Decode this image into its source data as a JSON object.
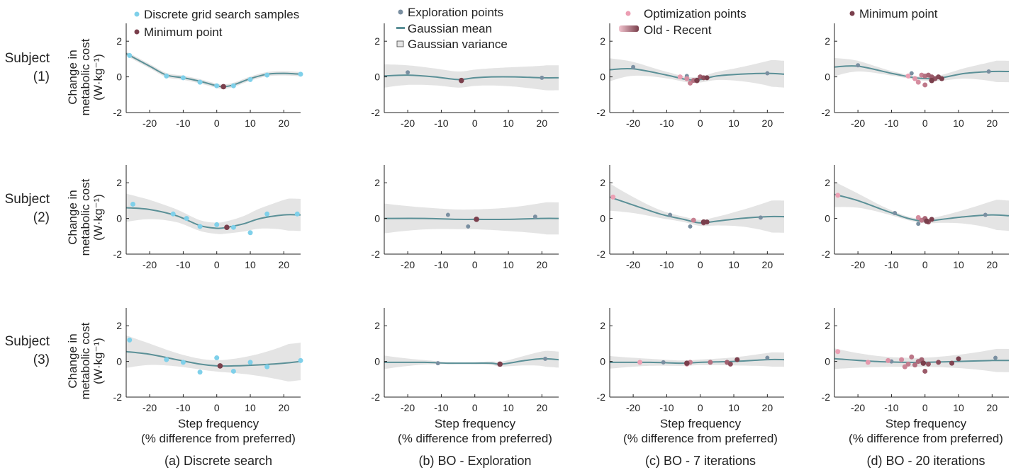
{
  "colors": {
    "grid": "#7fd0ea",
    "exploration": "#7a8fa1",
    "optimization": "#ec9eb3",
    "minimum": "#7a3f4c",
    "mean": "#5b9097",
    "variance": "#e4e4e4"
  },
  "legends": {
    "grid_search": "Discrete grid search samples",
    "minimum": "Minimum point",
    "exploration": "Exploration points",
    "gaussian_mean": "Gaussian mean",
    "gaussian_variance": "Gaussian variance",
    "optimization": "Optimization points",
    "old_recent": "Old - Recent"
  },
  "ylabel": [
    "Change in",
    "metabolic cost",
    "(W·kg⁻¹)"
  ],
  "xlabel": [
    "Step frequency",
    "(% difference from preferred)"
  ],
  "subjects": [
    {
      "name": "Subject",
      "id": "(1)"
    },
    {
      "name": "Subject",
      "id": "(2)"
    },
    {
      "name": "Subject",
      "id": "(3)"
    }
  ],
  "captions": [
    "(a)  Discrete search",
    "(b) BO - Exploration",
    "(c) BO - 7 iterations",
    "(d) BO - 20 iterations"
  ],
  "chart_data": {
    "type": "scatter",
    "xlim": [
      -27,
      25
    ],
    "ylim": [
      -2,
      3
    ],
    "xticks": [
      -20,
      -10,
      0,
      10,
      20
    ],
    "yticks": [
      -2,
      0,
      2
    ],
    "panels": [
      {
        "row": 0,
        "col": 0,
        "mean": [
          [
            -27,
            1.3
          ],
          [
            -20,
            0.6
          ],
          [
            -15,
            0.1
          ],
          [
            -10,
            -0.05
          ],
          [
            -5,
            -0.25
          ],
          [
            0,
            -0.5
          ],
          [
            2,
            -0.55
          ],
          [
            5,
            -0.45
          ],
          [
            10,
            -0.1
          ],
          [
            15,
            0.15
          ],
          [
            20,
            0.2
          ],
          [
            25,
            0.15
          ]
        ],
        "band": [
          0.12,
          0.12
        ],
        "grid": [
          [
            -26,
            1.2
          ],
          [
            -15,
            0.05
          ],
          [
            -10,
            -0.05
          ],
          [
            -5,
            -0.3
          ],
          [
            0,
            -0.5
          ],
          [
            5,
            -0.5
          ],
          [
            10,
            -0.15
          ],
          [
            15,
            0.1
          ],
          [
            25,
            0.15
          ]
        ],
        "explore": [],
        "optim": [],
        "minimum": [
          2,
          -0.55
        ]
      },
      {
        "row": 0,
        "col": 1,
        "mean": [
          [
            -27,
            0.05
          ],
          [
            -20,
            0.1
          ],
          [
            -12,
            0.0
          ],
          [
            -5,
            -0.15
          ],
          [
            0,
            -0.05
          ],
          [
            5,
            0.0
          ],
          [
            12,
            0.0
          ],
          [
            20,
            -0.05
          ],
          [
            25,
            -0.05
          ]
        ],
        "band": [
          0.7,
          0.45
        ],
        "grid": [],
        "explore": [
          [
            -20,
            0.25
          ],
          [
            20,
            -0.05
          ]
        ],
        "optim": [],
        "minimum": [
          -4,
          -0.2
        ]
      },
      {
        "row": 0,
        "col": 2,
        "mean": [
          [
            -27,
            0.4
          ],
          [
            -20,
            0.45
          ],
          [
            -10,
            0.1
          ],
          [
            -4,
            -0.15
          ],
          [
            0,
            -0.15
          ],
          [
            5,
            0.05
          ],
          [
            12,
            0.15
          ],
          [
            20,
            0.2
          ],
          [
            25,
            0.15
          ]
        ],
        "band": [
          0.75,
          0.15
        ],
        "grid": [],
        "explore": [
          [
            -20,
            0.55
          ],
          [
            -4,
            0.05
          ],
          [
            20,
            0.2
          ]
        ],
        "optim": [
          [
            -6,
            0.0
          ],
          [
            -4,
            -0.1
          ],
          [
            -3,
            -0.35
          ],
          [
            -2,
            -0.2
          ],
          [
            0,
            0.0
          ],
          [
            1,
            -0.05
          ],
          [
            2,
            -0.05
          ]
        ],
        "minimum": [
          -1,
          -0.2
        ]
      },
      {
        "row": 0,
        "col": 3,
        "mean": [
          [
            -27,
            0.55
          ],
          [
            -20,
            0.6
          ],
          [
            -10,
            0.2
          ],
          [
            -3,
            -0.05
          ],
          [
            1,
            -0.1
          ],
          [
            5,
            -0.05
          ],
          [
            12,
            0.2
          ],
          [
            20,
            0.3
          ],
          [
            25,
            0.3
          ]
        ],
        "band": [
          0.6,
          0.1
        ],
        "grid": [],
        "explore": [
          [
            -20,
            0.65
          ],
          [
            -4,
            0.2
          ],
          [
            19,
            0.3
          ]
        ],
        "optim": [
          [
            -5,
            0.05
          ],
          [
            -3,
            -0.1
          ],
          [
            -2,
            -0.3
          ],
          [
            -1,
            0.1
          ],
          [
            0,
            -0.45
          ],
          [
            0,
            0.05
          ],
          [
            1,
            0.1
          ],
          [
            2,
            0.0
          ],
          [
            3,
            -0.1
          ],
          [
            4,
            0.0
          ],
          [
            5,
            -0.1
          ]
        ],
        "minimum": [
          2,
          -0.2
        ]
      },
      {
        "row": 1,
        "col": 0,
        "mean": [
          [
            -27,
            0.6
          ],
          [
            -20,
            0.5
          ],
          [
            -12,
            0.15
          ],
          [
            -5,
            -0.4
          ],
          [
            0,
            -0.55
          ],
          [
            3,
            -0.5
          ],
          [
            8,
            -0.3
          ],
          [
            13,
            0.0
          ],
          [
            20,
            0.2
          ],
          [
            25,
            0.2
          ]
        ],
        "band": [
          0.9,
          0.3
        ],
        "grid": [
          [
            -25,
            0.8
          ],
          [
            -13,
            0.25
          ],
          [
            -9,
            0.0
          ],
          [
            -5,
            -0.45
          ],
          [
            0,
            -0.35
          ],
          [
            5,
            -0.5
          ],
          [
            10,
            -0.8
          ],
          [
            15,
            0.25
          ],
          [
            24,
            0.25
          ]
        ],
        "explore": [],
        "optim": [],
        "minimum": [
          3,
          -0.5
        ]
      },
      {
        "row": 1,
        "col": 1,
        "mean": [
          [
            -27,
            0.0
          ],
          [
            -15,
            0.0
          ],
          [
            -5,
            -0.05
          ],
          [
            0,
            -0.05
          ],
          [
            10,
            -0.05
          ],
          [
            20,
            0.0
          ],
          [
            25,
            0.0
          ]
        ],
        "band": [
          0.9,
          0.55
        ],
        "grid": [],
        "explore": [
          [
            -8,
            0.2
          ],
          [
            -2,
            -0.45
          ],
          [
            18,
            0.1
          ]
        ],
        "optim": [],
        "minimum": [
          0.5,
          -0.05
        ]
      },
      {
        "row": 1,
        "col": 2,
        "mean": [
          [
            -27,
            1.2
          ],
          [
            -20,
            0.75
          ],
          [
            -12,
            0.25
          ],
          [
            -5,
            -0.05
          ],
          [
            0,
            -0.25
          ],
          [
            5,
            -0.15
          ],
          [
            12,
            0.0
          ],
          [
            20,
            0.1
          ],
          [
            25,
            0.1
          ]
        ],
        "band": [
          0.9,
          0.15
        ],
        "grid": [],
        "explore": [
          [
            -9,
            0.2
          ],
          [
            -3,
            -0.45
          ],
          [
            18,
            0.05
          ]
        ],
        "optim": [
          [
            -26,
            1.2
          ],
          [
            -2,
            -0.1
          ],
          [
            1,
            -0.25
          ],
          [
            2,
            -0.2
          ]
        ],
        "minimum": [
          1,
          -0.2
        ]
      },
      {
        "row": 1,
        "col": 3,
        "mean": [
          [
            -27,
            1.35
          ],
          [
            -20,
            1.0
          ],
          [
            -12,
            0.45
          ],
          [
            -5,
            0.0
          ],
          [
            0,
            -0.15
          ],
          [
            5,
            -0.05
          ],
          [
            12,
            0.1
          ],
          [
            20,
            0.2
          ],
          [
            25,
            0.15
          ]
        ],
        "band": [
          0.85,
          0.1
        ],
        "grid": [],
        "explore": [
          [
            -9,
            0.3
          ],
          [
            -2,
            -0.3
          ],
          [
            18,
            0.2
          ]
        ],
        "optim": [
          [
            -26,
            1.3
          ],
          [
            -2,
            0.05
          ],
          [
            -1,
            -0.1
          ],
          [
            0,
            0.0
          ],
          [
            1,
            -0.2
          ],
          [
            2,
            -0.05
          ]
        ],
        "minimum": [
          0.5,
          -0.15
        ]
      },
      {
        "row": 2,
        "col": 0,
        "mean": [
          [
            -27,
            0.55
          ],
          [
            -20,
            0.4
          ],
          [
            -12,
            0.1
          ],
          [
            -5,
            -0.15
          ],
          [
            0,
            -0.25
          ],
          [
            5,
            -0.25
          ],
          [
            12,
            -0.2
          ],
          [
            20,
            -0.1
          ],
          [
            25,
            0.0
          ]
        ],
        "band": [
          1.05,
          0.3
        ],
        "grid": [
          [
            -26,
            1.2
          ],
          [
            -15,
            0.1
          ],
          [
            -10,
            -0.05
          ],
          [
            -5,
            -0.6
          ],
          [
            0,
            0.2
          ],
          [
            5,
            -0.55
          ],
          [
            10,
            -0.05
          ],
          [
            15,
            -0.3
          ],
          [
            25,
            0.05
          ]
        ],
        "explore": [],
        "optim": [],
        "minimum": [
          1,
          -0.25
        ]
      },
      {
        "row": 2,
        "col": 1,
        "mean": [
          [
            -27,
            -0.05
          ],
          [
            -15,
            -0.05
          ],
          [
            -8,
            -0.1
          ],
          [
            0,
            -0.1
          ],
          [
            5,
            -0.1
          ],
          [
            8,
            -0.15
          ],
          [
            15,
            0.05
          ],
          [
            20,
            0.15
          ],
          [
            25,
            0.1
          ]
        ],
        "band": [
          0.45,
          0.05
        ],
        "grid": [],
        "explore": [
          [
            -11,
            -0.1
          ],
          [
            21,
            0.15
          ]
        ],
        "optim": [],
        "minimum": [
          7.5,
          -0.15
        ]
      },
      {
        "row": 2,
        "col": 2,
        "mean": [
          [
            -27,
            -0.05
          ],
          [
            -15,
            -0.05
          ],
          [
            -5,
            -0.1
          ],
          [
            0,
            -0.05
          ],
          [
            10,
            0.0
          ],
          [
            20,
            0.1
          ],
          [
            25,
            0.1
          ]
        ],
        "band": [
          0.4,
          0.15
        ],
        "grid": [],
        "explore": [
          [
            -11,
            -0.05
          ],
          [
            20,
            0.2
          ]
        ],
        "optim": [
          [
            -18,
            -0.05
          ],
          [
            -4,
            -0.15
          ],
          [
            -3,
            -0.05
          ],
          [
            3,
            -0.05
          ],
          [
            8,
            -0.05
          ],
          [
            9,
            -0.15
          ],
          [
            11,
            0.1
          ]
        ],
        "minimum": [
          -4,
          -0.1
        ]
      },
      {
        "row": 2,
        "col": 3,
        "mean": [
          [
            -27,
            0.15
          ],
          [
            -15,
            0.0
          ],
          [
            -5,
            -0.05
          ],
          [
            0,
            -0.05
          ],
          [
            10,
            0.0
          ],
          [
            20,
            0.05
          ],
          [
            25,
            0.05
          ]
        ],
        "band": [
          0.65,
          0.25
        ],
        "grid": [],
        "explore": [
          [
            -10,
            0.0
          ],
          [
            21,
            0.2
          ]
        ],
        "optim": [
          [
            -26,
            0.55
          ],
          [
            -17,
            -0.05
          ],
          [
            -11,
            0.05
          ],
          [
            -7,
            0.1
          ],
          [
            -6,
            -0.3
          ],
          [
            -5,
            -0.15
          ],
          [
            -4,
            0.25
          ],
          [
            -3,
            -0.2
          ],
          [
            -2,
            0.0
          ],
          [
            -1,
            0.1
          ],
          [
            0,
            -0.55
          ],
          [
            1,
            -0.15
          ],
          [
            4,
            -0.05
          ],
          [
            8,
            -0.1
          ],
          [
            10,
            0.15
          ]
        ],
        "minimum": [
          -0.5,
          -0.1
        ]
      }
    ]
  }
}
